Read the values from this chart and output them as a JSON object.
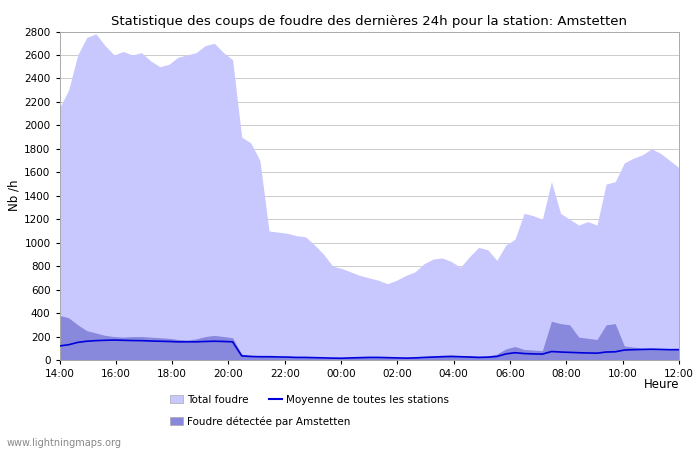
{
  "title": "Statistique des coups de foudre des dernières 24h pour la station: Amstetten",
  "xlabel": "Heure",
  "ylabel": "Nb /h",
  "ylim": [
    0,
    2800
  ],
  "yticks": [
    0,
    200,
    400,
    600,
    800,
    1000,
    1200,
    1400,
    1600,
    1800,
    2000,
    2200,
    2400,
    2600,
    2800
  ],
  "xtick_labels": [
    "14:00",
    "16:00",
    "18:00",
    "20:00",
    "22:00",
    "00:00",
    "02:00",
    "04:00",
    "06:00",
    "08:00",
    "10:00",
    "12:00"
  ],
  "color_total": "#c8c8ff",
  "color_local": "#8888dd",
  "color_mean": "#0000dd",
  "watermark": "www.lightningmaps.org",
  "legend_total": "Total foudre",
  "legend_mean": "Moyenne de toutes les stations",
  "legend_local": "Foudre détectée par Amstetten",
  "background_color": "#ffffff",
  "grid_color": "#cccccc",
  "total_foudre": [
    2150,
    2300,
    2600,
    2750,
    2780,
    2680,
    2600,
    2630,
    2600,
    2620,
    2550,
    2500,
    2520,
    2580,
    2600,
    2620,
    2680,
    2700,
    2620,
    2560,
    1900,
    1850,
    1700,
    1100,
    1090,
    1080,
    1060,
    1050,
    980,
    900,
    800,
    780,
    750,
    720,
    700,
    680,
    650,
    680,
    720,
    750,
    820,
    860,
    870,
    840,
    790,
    880,
    960,
    940,
    850,
    980,
    1030,
    1250,
    1230,
    1200,
    1520,
    1250,
    1200,
    1150,
    1180,
    1150,
    1500,
    1520,
    1680,
    1720,
    1750,
    1800,
    1760,
    1700,
    1640
  ],
  "local_foudre": [
    380,
    360,
    300,
    250,
    230,
    210,
    200,
    195,
    200,
    200,
    195,
    190,
    185,
    175,
    170,
    180,
    200,
    210,
    200,
    190,
    50,
    40,
    35,
    30,
    25,
    25,
    20,
    22,
    20,
    18,
    15,
    15,
    20,
    25,
    30,
    30,
    25,
    20,
    18,
    22,
    28,
    35,
    40,
    42,
    38,
    38,
    32,
    35,
    50,
    95,
    115,
    90,
    85,
    80,
    330,
    310,
    300,
    195,
    185,
    175,
    300,
    310,
    120,
    110,
    100,
    98,
    95,
    92,
    90
  ],
  "mean_line": [
    120,
    130,
    150,
    160,
    165,
    168,
    170,
    168,
    166,
    165,
    162,
    160,
    158,
    155,
    155,
    155,
    158,
    160,
    158,
    155,
    35,
    30,
    28,
    28,
    26,
    25,
    22,
    22,
    20,
    18,
    16,
    15,
    18,
    20,
    22,
    22,
    20,
    18,
    16,
    18,
    22,
    25,
    28,
    30,
    28,
    25,
    22,
    24,
    30,
    52,
    62,
    55,
    52,
    50,
    72,
    68,
    65,
    62,
    60,
    58,
    68,
    70,
    85,
    88,
    90,
    92,
    90,
    88,
    88
  ]
}
